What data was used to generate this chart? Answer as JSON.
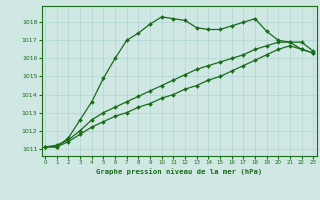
{
  "title": "Graphe pression niveau de la mer (hPa)",
  "background_color": "#cfe8e4",
  "grid_color": "#b0d4d0",
  "line_color": "#1a6b1a",
  "ylim": [
    1010.6,
    1018.9
  ],
  "xlim": [
    -0.3,
    23.3
  ],
  "yticks": [
    1011,
    1012,
    1013,
    1014,
    1015,
    1016,
    1017,
    1018
  ],
  "xticks": [
    0,
    1,
    2,
    3,
    4,
    5,
    6,
    7,
    8,
    9,
    10,
    11,
    12,
    13,
    14,
    15,
    16,
    17,
    18,
    19,
    20,
    21,
    22,
    23
  ],
  "series1_y": [
    1011.1,
    1011.1,
    1011.6,
    1012.6,
    1013.6,
    1014.9,
    1016.0,
    1017.0,
    1017.4,
    1017.9,
    1018.3,
    1018.2,
    1018.1,
    1017.7,
    1017.6,
    1017.6,
    1017.8,
    1018.0,
    1018.2,
    1017.5,
    1017.0,
    1016.9,
    1016.9,
    1016.4
  ],
  "series2_y": [
    1011.1,
    1011.2,
    1011.5,
    1012.0,
    1012.6,
    1013.0,
    1013.3,
    1013.6,
    1013.9,
    1014.2,
    1014.5,
    1014.8,
    1015.1,
    1015.4,
    1015.6,
    1015.8,
    1016.0,
    1016.2,
    1016.5,
    1016.7,
    1016.9,
    1016.9,
    1016.5,
    1016.3
  ],
  "series3_y": [
    1011.1,
    1011.1,
    1011.4,
    1011.8,
    1012.2,
    1012.5,
    1012.8,
    1013.0,
    1013.3,
    1013.5,
    1013.8,
    1014.0,
    1014.3,
    1014.5,
    1014.8,
    1015.0,
    1015.3,
    1015.6,
    1015.9,
    1016.2,
    1016.5,
    1016.7,
    1016.5,
    1016.3
  ]
}
